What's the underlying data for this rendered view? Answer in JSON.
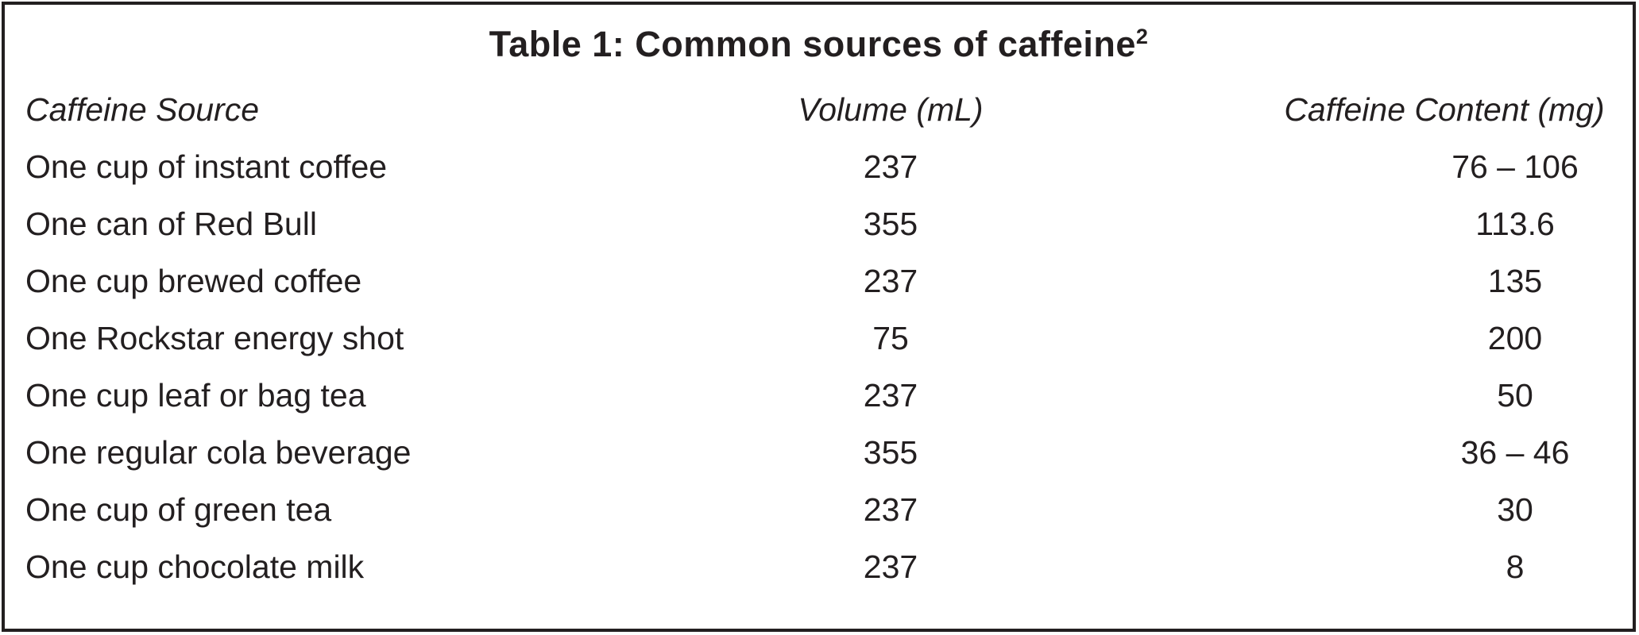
{
  "table": {
    "title": "Table 1: Common sources of caffeine",
    "title_superscript": "2",
    "columns": [
      "Caffeine Source",
      "Volume (mL)",
      "Caffeine Content (mg)"
    ],
    "rows": [
      {
        "source": "One cup of instant coffee",
        "volume": "237",
        "caffeine": "76 – 106"
      },
      {
        "source": "One can of Red Bull",
        "volume": "355",
        "caffeine": "113.6"
      },
      {
        "source": "One cup brewed coffee",
        "volume": "237",
        "caffeine": "135"
      },
      {
        "source": "One Rockstar energy shot",
        "volume": "75",
        "caffeine": "200"
      },
      {
        "source": "One cup leaf or bag tea",
        "volume": "237",
        "caffeine": "50"
      },
      {
        "source": "One regular cola beverage",
        "volume": "355",
        "caffeine": "36 – 46"
      },
      {
        "source": "One cup of green tea",
        "volume": "237",
        "caffeine": "30"
      },
      {
        "source": "One cup chocolate milk",
        "volume": "237",
        "caffeine": "8"
      }
    ],
    "colors": {
      "text": "#231f20",
      "border": "#231f20",
      "background": "#ffffff"
    }
  }
}
